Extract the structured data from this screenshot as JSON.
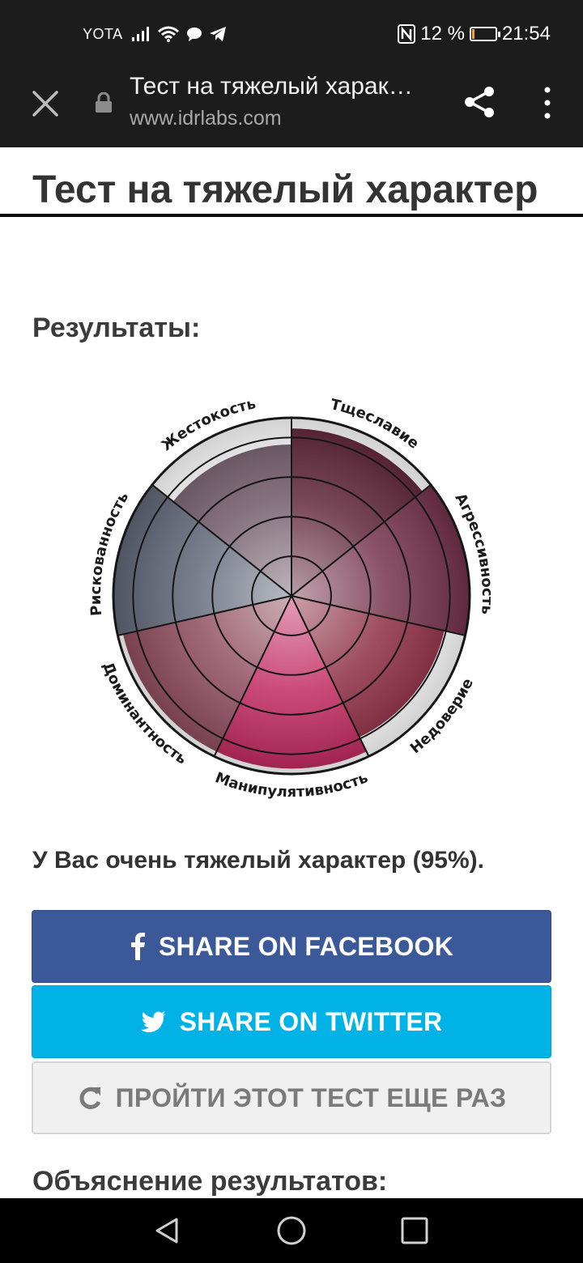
{
  "status_bar": {
    "carrier": "YOTA",
    "battery": "12 %",
    "battery_level": 0.12,
    "time": "21:54"
  },
  "browser": {
    "page_title": "Тест на тяжелый харак…",
    "url": "www.idrlabs.com"
  },
  "page": {
    "title": "Тест на тяжелый характер",
    "results_heading": "Результаты:",
    "result_text": "У Вас очень тяжелый характер (95%).",
    "share_facebook": "SHARE ON FACEBOOK",
    "share_twitter": "SHARE ON TWITTER",
    "retake": "ПРОЙТИ ЭТОТ ТЕСТ ЕЩЕ РАЗ",
    "explanation_heading": "Объяснение результатов:"
  },
  "chart_data": {
    "type": "polar-area",
    "categories": [
      "Тщеславие",
      "Агрессивность",
      "Недоверие",
      "Манипулятивность",
      "Доминантность",
      "Рискованность",
      "Жестокость"
    ],
    "values": [
      0.94,
      1.0,
      0.88,
      0.97,
      0.97,
      1.0,
      0.85
    ],
    "max": 1.0,
    "rings": 4,
    "grid": true
  },
  "colors": {
    "facebook": "#3b5998",
    "twitter": "#00b2e6",
    "segment_colors": [
      "#5e2438",
      "#74324a",
      "#8c2b41",
      "#c0295e",
      "#8e4b5c",
      "#606778",
      "#6e5866"
    ]
  }
}
